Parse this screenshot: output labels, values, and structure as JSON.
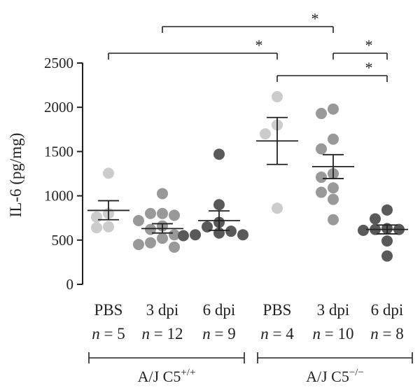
{
  "chart_data": {
    "type": "scatter",
    "ylabel": "IL-6 (pg/mg)",
    "ylim": [
      0,
      2500
    ],
    "yticks": [
      0,
      500,
      1000,
      1500,
      2000,
      2500
    ],
    "groups": [
      {
        "label": "PBS",
        "n_label": "n = 5",
        "color": "#cccccc",
        "values": [
          1255,
          800,
          650,
          640,
          760
        ],
        "mean": 835,
        "sem_low": 730,
        "sem_high": 945
      },
      {
        "label": "3 dpi",
        "n_label": "n = 12",
        "color": "#999999",
        "values": [
          1025,
          800,
          800,
          780,
          720,
          660,
          620,
          560,
          520,
          470,
          450,
          420
        ],
        "mean": 630,
        "sem_low": 580,
        "sem_high": 685
      },
      {
        "label": "6 dpi",
        "n_label": "n = 9",
        "color": "#595959",
        "values": [
          1470,
          900,
          700,
          650,
          600,
          580,
          560,
          560,
          550
        ],
        "mean": 720,
        "sem_low": 610,
        "sem_high": 830
      },
      {
        "label": "PBS",
        "n_label": "n = 4",
        "color": "#cccccc",
        "values": [
          2120,
          1800,
          1700,
          860
        ],
        "mean": 1620,
        "sem_low": 1355,
        "sem_high": 1885
      },
      {
        "label": "3 dpi",
        "n_label": "n = 10",
        "color": "#999999",
        "values": [
          1980,
          1930,
          1640,
          1530,
          1250,
          1210,
          1090,
          1040,
          960,
          730
        ],
        "mean": 1330,
        "sem_low": 1195,
        "sem_high": 1465
      },
      {
        "label": "6 dpi",
        "n_label": "n = 8",
        "color": "#595959",
        "values": [
          840,
          740,
          630,
          620,
          620,
          610,
          490,
          320
        ],
        "mean": 620,
        "sem_low": 570,
        "sem_high": 670
      }
    ],
    "group_labels": [
      {
        "text": "A/J C5",
        "superscript": "+/+",
        "from": 0,
        "to": 2
      },
      {
        "text": "A/J C5",
        "superscript": "−/−",
        "from": 3,
        "to": 5
      }
    ],
    "significance": [
      {
        "from": 1,
        "to": 4,
        "label": "*",
        "level": 3
      },
      {
        "from": 0,
        "to": 3,
        "label": "*",
        "level": 2
      },
      {
        "from": 4,
        "to": 5,
        "label": "*",
        "level": 1
      },
      {
        "from": 3,
        "to": 5,
        "label": "*",
        "level": 0
      }
    ]
  }
}
